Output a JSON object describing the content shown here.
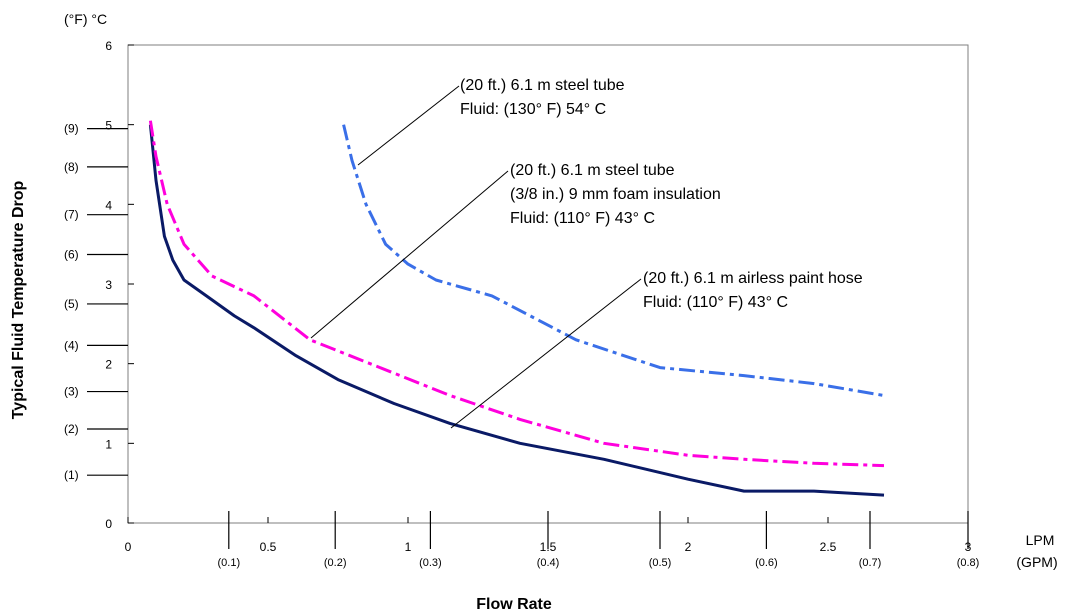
{
  "chart_data": {
    "type": "line",
    "title": "",
    "xlabel": "Flow Rate",
    "ylabel": "Typical Fluid Temperature Drop",
    "y_unit_label": "(°F) °C",
    "x_unit_label_primary": "LPM",
    "x_unit_label_secondary": "(GPM)",
    "xlim": [
      0,
      3
    ],
    "ylim": [
      0,
      6
    ],
    "x_ticks": [
      "0",
      "0.5",
      "1",
      "1.5",
      "2",
      "2.5",
      "3"
    ],
    "y_ticks": [
      "0",
      "1",
      "2",
      "3",
      "4",
      "5",
      "6"
    ],
    "x_ticks_secondary": [
      {
        "label": "(0.1)",
        "value": 0.36
      },
      {
        "label": "(0.2)",
        "value": 0.74
      },
      {
        "label": "(0.3)",
        "value": 1.08
      },
      {
        "label": "(0.4)",
        "value": 1.5
      },
      {
        "label": "(0.5)",
        "value": 1.9
      },
      {
        "label": "(0.6)",
        "value": 2.28
      },
      {
        "label": "(0.7)",
        "value": 2.65
      },
      {
        "label": "(0.8)",
        "value": 3.0
      }
    ],
    "y_ticks_secondary": [
      {
        "label": "(1)",
        "value": 0.6
      },
      {
        "label": "(2)",
        "value": 1.18
      },
      {
        "label": "(3)",
        "value": 1.65
      },
      {
        "label": "(4)",
        "value": 2.23
      },
      {
        "label": "(5)",
        "value": 2.75
      },
      {
        "label": "(6)",
        "value": 3.37
      },
      {
        "label": "(7)",
        "value": 3.87
      },
      {
        "label": "(8)",
        "value": 4.47
      },
      {
        "label": "(9)",
        "value": 4.95
      }
    ],
    "grid": false,
    "series": [
      {
        "name": "",
        "color": "#0a1a66",
        "dash": "solid",
        "x": [
          0.08,
          0.1,
          0.13,
          0.16,
          0.2,
          0.28,
          0.38,
          0.45,
          0.6,
          0.75,
          0.95,
          1.15,
          1.4,
          1.7,
          2.0,
          2.2,
          2.45,
          2.7
        ],
        "y": [
          5.0,
          4.3,
          3.6,
          3.3,
          3.05,
          2.85,
          2.6,
          2.45,
          2.1,
          1.8,
          1.5,
          1.25,
          1.0,
          0.8,
          0.55,
          0.4,
          0.4,
          0.35
        ]
      },
      {
        "name": "",
        "color": "#ff00dd",
        "dash": "dashdot",
        "x": [
          0.08,
          0.1,
          0.14,
          0.2,
          0.3,
          0.45,
          0.65,
          0.9,
          1.15,
          1.4,
          1.7,
          2.0,
          2.2,
          2.45,
          2.7
        ],
        "y": [
          5.05,
          4.6,
          4.0,
          3.5,
          3.1,
          2.85,
          2.3,
          1.95,
          1.6,
          1.3,
          1.0,
          0.85,
          0.8,
          0.75,
          0.72
        ]
      },
      {
        "name": "",
        "color": "#3a6fe8",
        "dash": "dashdot",
        "x": [
          0.77,
          0.8,
          0.85,
          0.92,
          1.0,
          1.1,
          1.3,
          1.6,
          1.9,
          2.2,
          2.45,
          2.7
        ],
        "y": [
          5.0,
          4.55,
          4.0,
          3.5,
          3.25,
          3.05,
          2.85,
          2.3,
          1.95,
          1.85,
          1.75,
          1.6
        ]
      }
    ],
    "annotations": [
      {
        "lines": [
          "(20 ft.) 6.1 m steel tube",
          "Fluid: (130° F) 54° C"
        ],
        "series_index": 2
      },
      {
        "lines": [
          "(20 ft.) 6.1 m steel tube",
          "(3/8 in.) 9 mm foam insulation",
          "Fluid: (110° F) 43° C"
        ],
        "series_index": 1
      },
      {
        "lines": [
          "(20 ft.) 6.1 m airless paint hose",
          "Fluid: (110° F) 43° C"
        ],
        "series_index": 0
      }
    ]
  }
}
